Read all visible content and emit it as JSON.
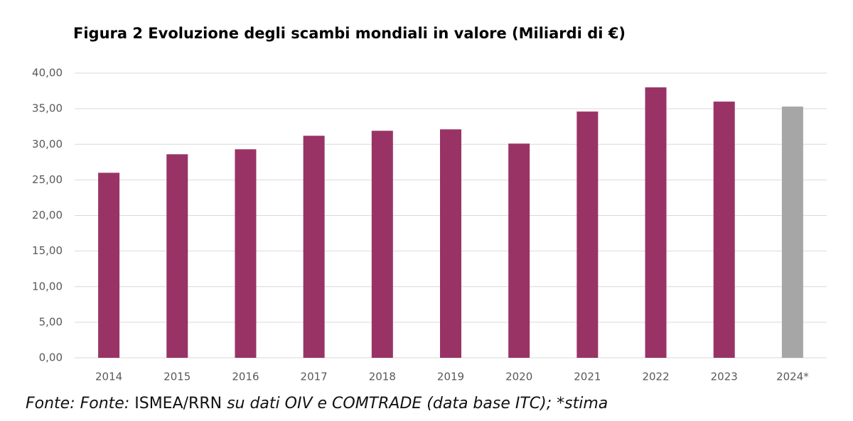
{
  "chart_data": {
    "type": "bar",
    "title": "Figura 2 Evoluzione degli scambi mondiali in valore (Miliardi di €)",
    "categories": [
      "2014",
      "2015",
      "2016",
      "2017",
      "2018",
      "2019",
      "2020",
      "2021",
      "2022",
      "2023",
      "2024*"
    ],
    "values": [
      26.0,
      28.6,
      29.3,
      31.2,
      31.9,
      32.1,
      30.1,
      34.6,
      38.0,
      36.0,
      35.3
    ],
    "colors": [
      "#993366",
      "#993366",
      "#993366",
      "#993366",
      "#993366",
      "#993366",
      "#993366",
      "#993366",
      "#993366",
      "#993366",
      "#a6a6a6"
    ],
    "ylim": [
      0,
      40
    ],
    "yticks": [
      {
        "value": 0,
        "label": "0,00"
      },
      {
        "value": 5,
        "label": "5,00"
      },
      {
        "value": 10,
        "label": "10,00"
      },
      {
        "value": 15,
        "label": "15,00"
      },
      {
        "value": 20,
        "label": "20,00"
      },
      {
        "value": 25,
        "label": "25,00"
      },
      {
        "value": 30,
        "label": "30,00"
      },
      {
        "value": 35,
        "label": "35,00"
      },
      {
        "value": 40,
        "label": "40,00"
      }
    ],
    "grid": true,
    "source": [
      "Fonte: Fonte: ",
      "ISMEA/RRN",
      " su dati OIV e COMTRADE (data base ITC); *stima"
    ]
  }
}
